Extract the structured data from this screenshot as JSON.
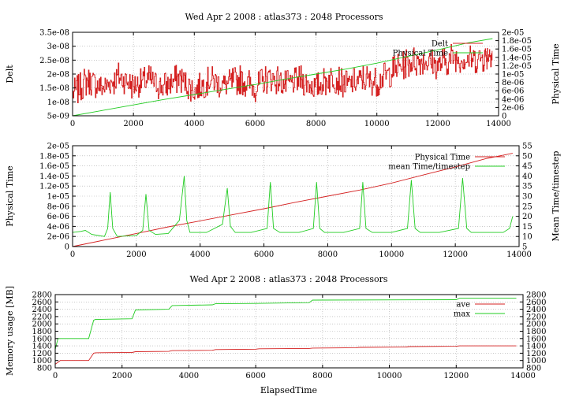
{
  "colors": {
    "red": "#d42020",
    "green": "#22cc22",
    "text": "#000000",
    "grid": "#aaaaaa"
  },
  "chart_data": [
    {
      "type": "line",
      "title": "Wed Apr 2 2008 : atlas373 : 2048 Processors",
      "xlabel": "",
      "ylabel": "Delt",
      "y2label": "Physical Time",
      "xlim": [
        0,
        14000
      ],
      "ylim": [
        5e-09,
        3.5e-08
      ],
      "y2lim": [
        0,
        2e-05
      ],
      "xticks": [
        0,
        2000,
        4000,
        6000,
        8000,
        10000,
        12000,
        14000
      ],
      "xtick_labels": [
        "0",
        "2000",
        "4000",
        "6000",
        "8000",
        "10000",
        "12000",
        "14000"
      ],
      "yticks": [
        5e-09,
        1e-08,
        1.5e-08,
        2e-08,
        2.5e-08,
        3e-08,
        3.5e-08
      ],
      "ytick_labels": [
        "5e-09",
        "1e-08",
        "1.5e-08",
        "2e-08",
        "2.5e-08",
        "3e-08",
        "3.5e-08"
      ],
      "y2ticks": [
        0,
        2e-06,
        4e-06,
        6e-06,
        8e-06,
        1e-05,
        1.2e-05,
        1.4e-05,
        1.6e-05,
        1.8e-05,
        2e-05
      ],
      "y2tick_labels": [
        "0",
        "2e-06",
        "4e-06",
        "6e-06",
        "8e-06",
        "1e-05",
        "1.2e-05",
        "1.4e-05",
        "1.6e-05",
        "1.8e-05",
        "2e-05"
      ],
      "grid": true,
      "legend": "top-right",
      "series": [
        {
          "name": "Delt",
          "axis": "left",
          "color": "#d42020",
          "x": [
            0,
            500,
            1000,
            1500,
            2000,
            2500,
            3000,
            3500,
            4000,
            4500,
            5000,
            5500,
            6000,
            6500,
            7000,
            7500,
            8000,
            8500,
            9000,
            9500,
            10000,
            10500,
            11000,
            11500,
            12000,
            12500,
            13000,
            13500,
            13800
          ],
          "y": [
            1.3e-08,
            1.8e-08,
            1.5e-08,
            1.9e-08,
            1.6e-08,
            1.8e-08,
            1.5e-08,
            1.9e-08,
            1.4e-08,
            1.8e-08,
            1.6e-08,
            1.8e-08,
            1.5e-08,
            1.9e-08,
            1.6e-08,
            1.8e-08,
            1.5e-08,
            1.9e-08,
            1.6e-08,
            1.8e-08,
            1.7e-08,
            2.1e-08,
            2.4e-08,
            2.5e-08,
            2.3e-08,
            2.6e-08,
            2.5e-08,
            2.6e-08,
            2.8e-08
          ]
        },
        {
          "name": "Physical Time",
          "axis": "right",
          "color": "#22cc22",
          "x": [
            0,
            1000,
            2000,
            3000,
            4000,
            5000,
            6000,
            7000,
            8000,
            9000,
            10000,
            11000,
            12000,
            13000,
            13800
          ],
          "y": [
            0,
            1.3e-06,
            2.6e-06,
            3.9e-06,
            5.1e-06,
            6.3e-06,
            7.5e-06,
            8.8e-06,
            1e-05,
            1.12e-05,
            1.26e-05,
            1.42e-05,
            1.58e-05,
            1.75e-05,
            1.85e-05
          ]
        }
      ]
    },
    {
      "type": "line",
      "title": "",
      "xlabel": "",
      "ylabel": "Physical Time",
      "y2label": "Mean Time/timestep",
      "xlim": [
        0,
        14000
      ],
      "ylim": [
        0,
        2e-05
      ],
      "y2lim": [
        5,
        55
      ],
      "xticks": [
        0,
        2000,
        4000,
        6000,
        8000,
        10000,
        12000,
        14000
      ],
      "xtick_labels": [
        "0",
        "2000",
        "4000",
        "6000",
        "8000",
        "10000",
        "12000",
        "14000"
      ],
      "yticks": [
        0,
        2e-06,
        4e-06,
        6e-06,
        8e-06,
        1e-05,
        1.2e-05,
        1.4e-05,
        1.6e-05,
        1.8e-05,
        2e-05
      ],
      "ytick_labels": [
        "0",
        "2e-06",
        "4e-06",
        "6e-06",
        "8e-06",
        "1e-05",
        "1.2e-05",
        "1.4e-05",
        "1.6e-05",
        "1.8e-05",
        "2e-05"
      ],
      "y2ticks": [
        5,
        10,
        15,
        20,
        25,
        30,
        35,
        40,
        45,
        50,
        55
      ],
      "y2tick_labels": [
        "5",
        "10",
        "15",
        "20",
        "25",
        "30",
        "35",
        "40",
        "45",
        "50",
        "55"
      ],
      "grid": true,
      "legend": "top-right",
      "series": [
        {
          "name": "Physical Time",
          "axis": "left",
          "color": "#d42020",
          "x": [
            0,
            1000,
            2000,
            3000,
            4000,
            5000,
            6000,
            7000,
            8000,
            9000,
            10000,
            11000,
            12000,
            13000,
            13800
          ],
          "y": [
            0,
            1.3e-06,
            2.6e-06,
            3.9e-06,
            5.1e-06,
            6.3e-06,
            7.5e-06,
            8.8e-06,
            1e-05,
            1.12e-05,
            1.26e-05,
            1.42e-05,
            1.58e-05,
            1.75e-05,
            1.85e-05
          ]
        },
        {
          "name": "mean Time/timestep",
          "axis": "right",
          "color": "#22cc22",
          "x": [
            0,
            250,
            400,
            600,
            1000,
            1100,
            1180,
            1260,
            1400,
            2000,
            2200,
            2300,
            2400,
            2600,
            3000,
            3350,
            3500,
            3580,
            3680,
            3800,
            4200,
            4700,
            4850,
            4950,
            5100,
            5600,
            6100,
            6200,
            6300,
            6500,
            7100,
            7550,
            7650,
            7750,
            7900,
            8500,
            9000,
            9100,
            9200,
            9400,
            10000,
            10500,
            10620,
            10740,
            10900,
            11500,
            12100,
            12230,
            12360,
            12500,
            13500,
            13700,
            13800
          ],
          "y": [
            12,
            12.5,
            13,
            11,
            10,
            14,
            32,
            14,
            10,
            10.5,
            13,
            31,
            13,
            11,
            11.5,
            18,
            40,
            18,
            12,
            12,
            12,
            16,
            34,
            15,
            12,
            12,
            14,
            37,
            14,
            12,
            12,
            14,
            37,
            14,
            12,
            12,
            14,
            37,
            14,
            12,
            12,
            14,
            38,
            14,
            12,
            12,
            14,
            39,
            14,
            12,
            12,
            14,
            20
          ]
        }
      ]
    },
    {
      "type": "line",
      "title": "Wed Apr 2 2008 : atlas373 : 2048 Processors",
      "xlabel": "ElapsedTime",
      "ylabel": "Memory usage [MB]",
      "xlim": [
        0,
        14000
      ],
      "ylim": [
        800,
        2800
      ],
      "y2lim": [
        800,
        2800
      ],
      "xticks": [
        0,
        2000,
        4000,
        6000,
        8000,
        10000,
        12000,
        14000
      ],
      "xtick_labels": [
        "0",
        "2000",
        "4000",
        "6000",
        "8000",
        "10000",
        "12000",
        "14000"
      ],
      "yticks": [
        800,
        1000,
        1200,
        1400,
        1600,
        1800,
        2000,
        2200,
        2400,
        2600,
        2800
      ],
      "ytick_labels": [
        "800",
        "1000",
        "1200",
        "1400",
        "1600",
        "1800",
        "2000",
        "2200",
        "2400",
        "2600",
        "2800"
      ],
      "y2ticks": [
        800,
        1000,
        1200,
        1400,
        1600,
        1800,
        2000,
        2200,
        2400,
        2600,
        2800
      ],
      "y2tick_labels": [
        "800",
        "1000",
        "1200",
        "1400",
        "1600",
        "1800",
        "2000",
        "2200",
        "2400",
        "2600",
        "2800"
      ],
      "grid": true,
      "legend": "top-right",
      "series": [
        {
          "name": "ave",
          "axis": "left",
          "color": "#d42020",
          "x": [
            0,
            80,
            150,
            1000,
            1150,
            1200,
            2300,
            2400,
            3400,
            3500,
            4700,
            4800,
            6000,
            6100,
            7600,
            7700,
            9000,
            9100,
            10500,
            10600,
            12000,
            12100,
            13800
          ],
          "y": [
            900,
            950,
            1000,
            1000,
            1200,
            1210,
            1220,
            1240,
            1250,
            1270,
            1280,
            1300,
            1310,
            1320,
            1330,
            1340,
            1350,
            1360,
            1370,
            1380,
            1390,
            1400,
            1400
          ]
        },
        {
          "name": "max",
          "axis": "left",
          "color": "#22cc22",
          "x": [
            0,
            80,
            150,
            1000,
            1150,
            1200,
            2300,
            2400,
            3400,
            3500,
            4700,
            4800,
            6000,
            7600,
            7700,
            12000,
            12100,
            13800
          ],
          "y": [
            1300,
            1600,
            1600,
            1600,
            2100,
            2120,
            2140,
            2380,
            2400,
            2500,
            2520,
            2550,
            2560,
            2580,
            2650,
            2660,
            2700,
            2700
          ]
        }
      ]
    }
  ]
}
